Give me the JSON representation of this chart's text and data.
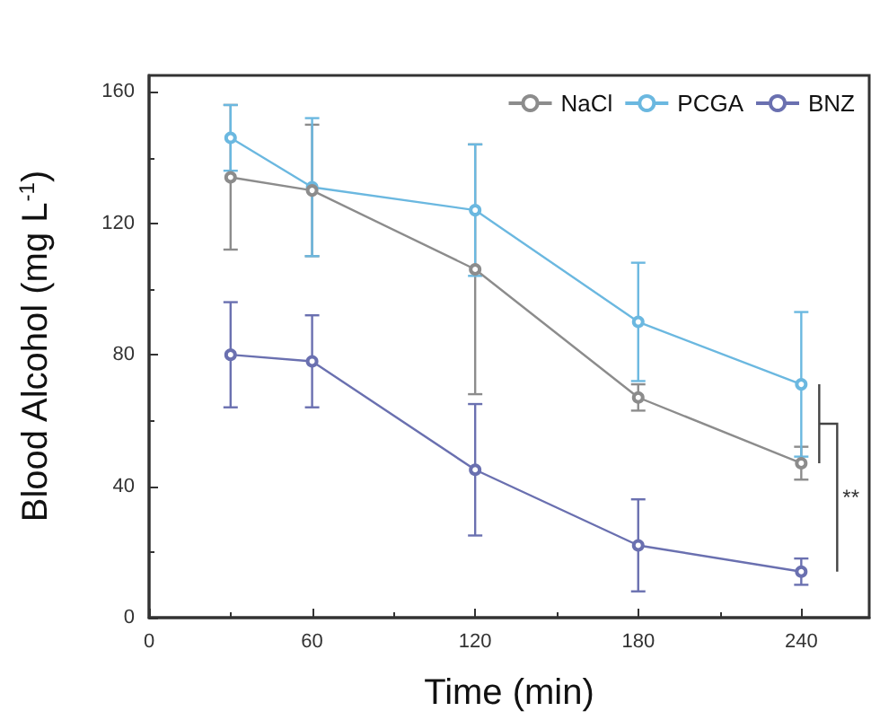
{
  "chart_data": {
    "type": "line",
    "xlabel": "Time (min)",
    "ylabel": "Blood Alcohol (mg L$^{-1}$)",
    "x": [
      30,
      60,
      120,
      180,
      240
    ],
    "series": [
      {
        "name": "NaCl",
        "color": "#8c8c8c",
        "values": [
          134,
          130,
          106,
          67,
          47
        ],
        "errors": [
          22,
          20,
          38,
          4,
          5
        ]
      },
      {
        "name": "PCGA",
        "color": "#6bb8e0",
        "values": [
          146,
          131,
          124,
          90,
          71
        ],
        "errors": [
          10,
          21,
          20,
          18,
          22
        ]
      },
      {
        "name": "BNZ",
        "color": "#6a70b0",
        "values": [
          80,
          78,
          45,
          22,
          14
        ],
        "errors": [
          16,
          14,
          20,
          14,
          4
        ]
      }
    ],
    "xlim": [
      0,
      265
    ],
    "xticks": [
      0,
      60,
      120,
      180,
      240
    ],
    "ylim": [
      0,
      165
    ],
    "yticks": [
      0,
      40,
      80,
      120,
      160
    ],
    "grid": false,
    "legend": "top right",
    "marker": "circle",
    "line_style": "solid",
    "annotations": [
      "**"
    ]
  }
}
